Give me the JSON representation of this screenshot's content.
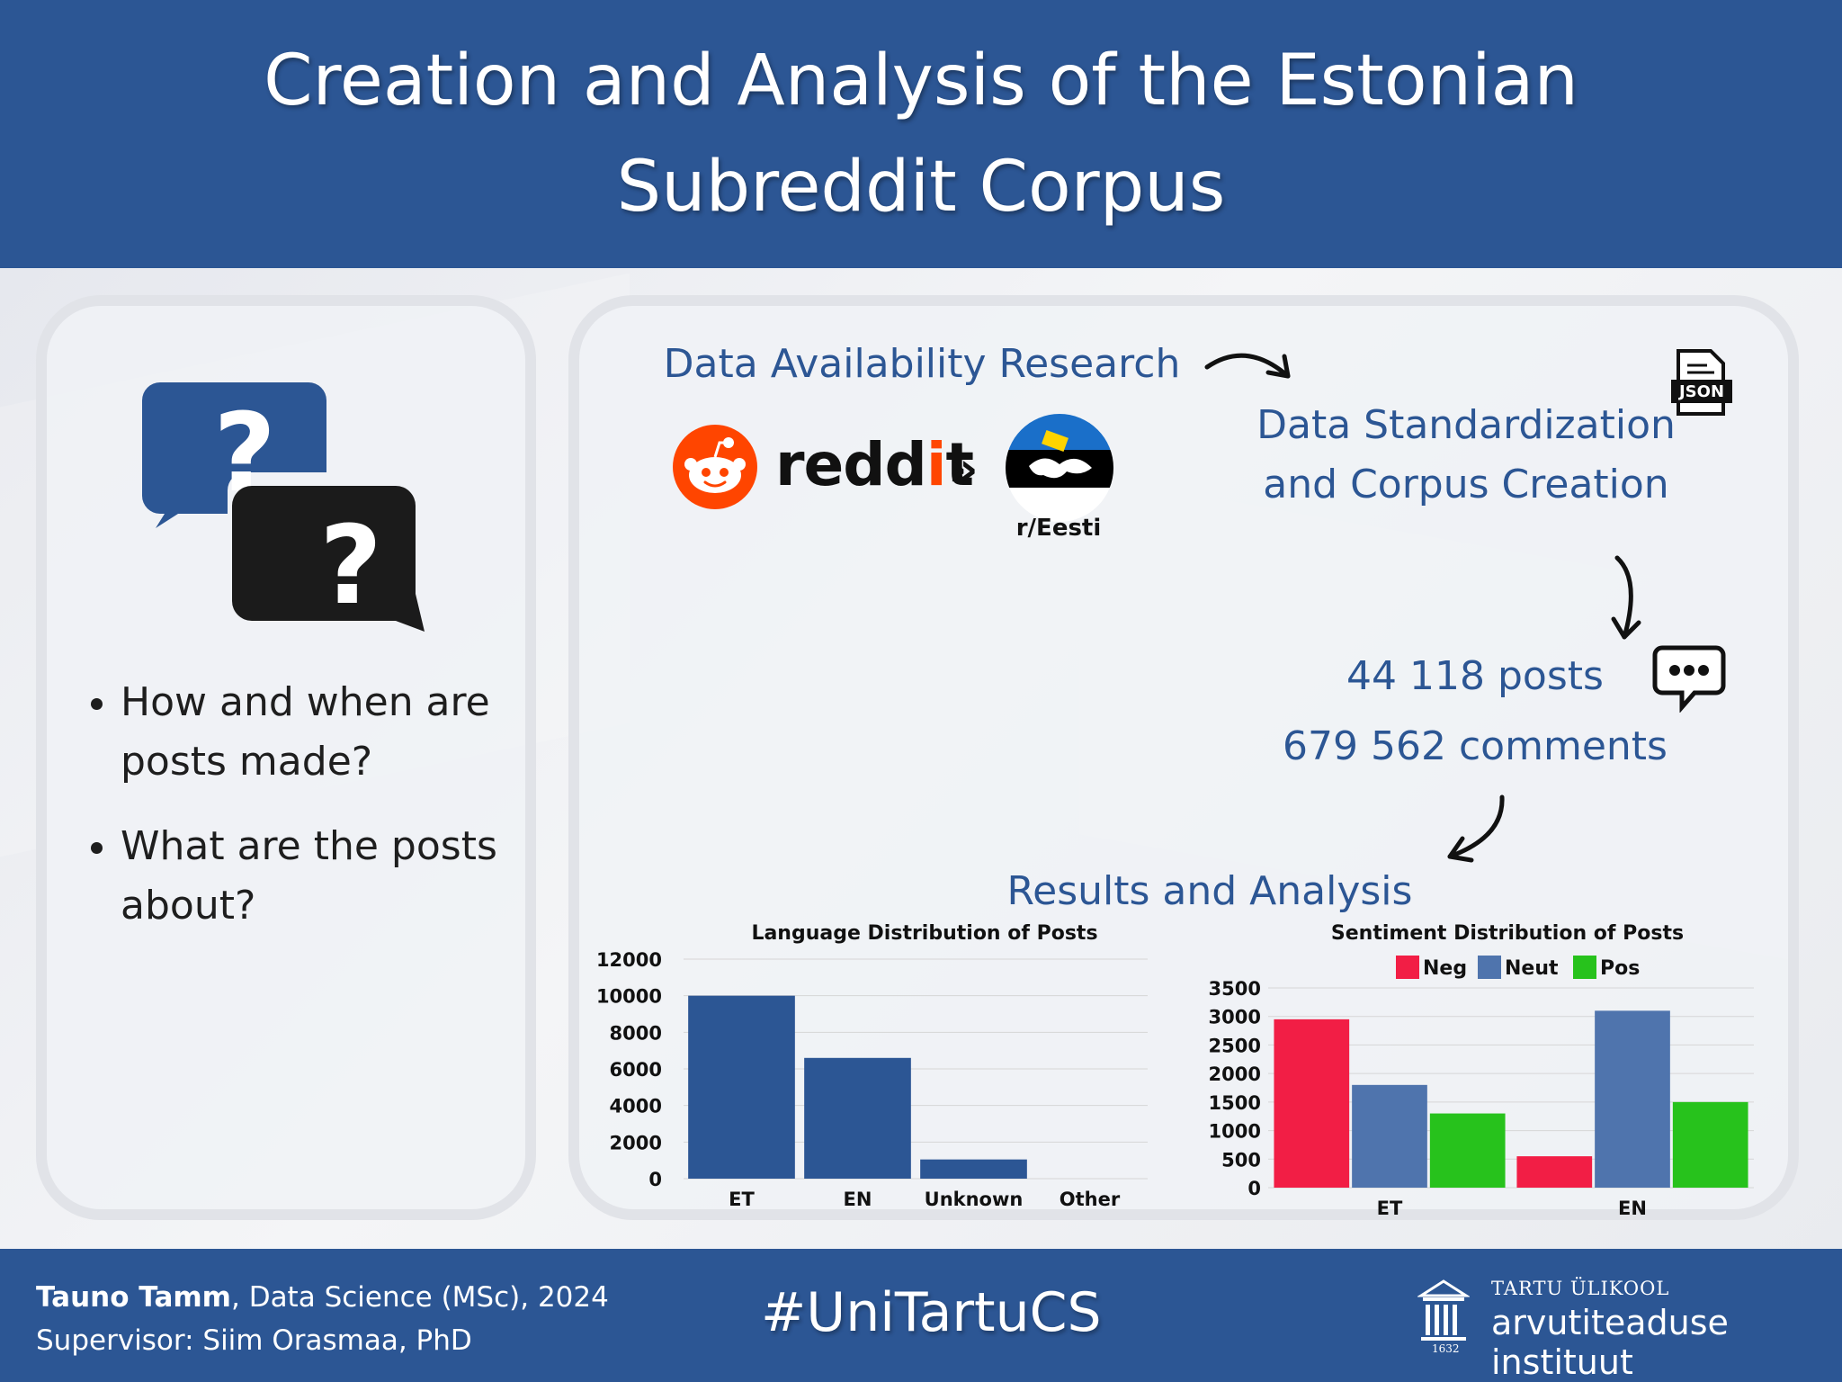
{
  "header": {
    "title_line1": "Creation and Analysis of the Estonian",
    "title_line2": "Subreddit Corpus"
  },
  "questions": [
    "How and when are posts made?",
    "What are the posts about?"
  ],
  "flow": {
    "step1": "Data Availability Research",
    "reddit_word_a": "redd",
    "reddit_word_b": "i",
    "reddit_word_c": "t",
    "chevrons": "»",
    "subreddit": "r/Eesti",
    "json_label": "JSON",
    "step2_line1": "Data Standardization",
    "step2_line2": "and Corpus Creation",
    "posts": "44 118 posts",
    "comments": "679 562 comments",
    "step3": "Results and Analysis"
  },
  "chart_data": [
    {
      "type": "bar",
      "title": "Language Distribution of Posts",
      "categories": [
        "ET",
        "EN",
        "Unknown",
        "Other"
      ],
      "values": [
        10000,
        6600,
        1050,
        0
      ],
      "ylim": [
        0,
        12000
      ],
      "yticks": [
        "12000",
        "10000",
        "8000",
        "6000",
        "4000",
        "2000",
        "0"
      ],
      "color": "#2c5694",
      "grid": true
    },
    {
      "type": "bar",
      "title": "Sentiment Distribution of Posts",
      "categories": [
        "ET",
        "EN"
      ],
      "series": [
        {
          "name": "Neg",
          "color": "#f21e45",
          "values": [
            2950,
            550
          ]
        },
        {
          "name": "Neut",
          "color": "#4f74ad",
          "values": [
            1800,
            3100
          ]
        },
        {
          "name": "Pos",
          "color": "#27c21c",
          "values": [
            1300,
            1500
          ]
        }
      ],
      "ylim": [
        0,
        3500
      ],
      "yticks": [
        "3500",
        "3000",
        "2500",
        "2000",
        "1500",
        "1000",
        "500",
        "0"
      ],
      "legend": "top",
      "grid": true
    }
  ],
  "footer": {
    "author_name": "Tauno Tamm",
    "author_rest": ", Data Science (MSc), 2024",
    "supervisor": "Supervisor: Siim Orasmaa, PhD",
    "hashtag": "#UniTartuCS",
    "org_small": "TARTU ÜLIKOOL",
    "org_large": "arvutiteaduse instituut",
    "org_year": "1632"
  }
}
